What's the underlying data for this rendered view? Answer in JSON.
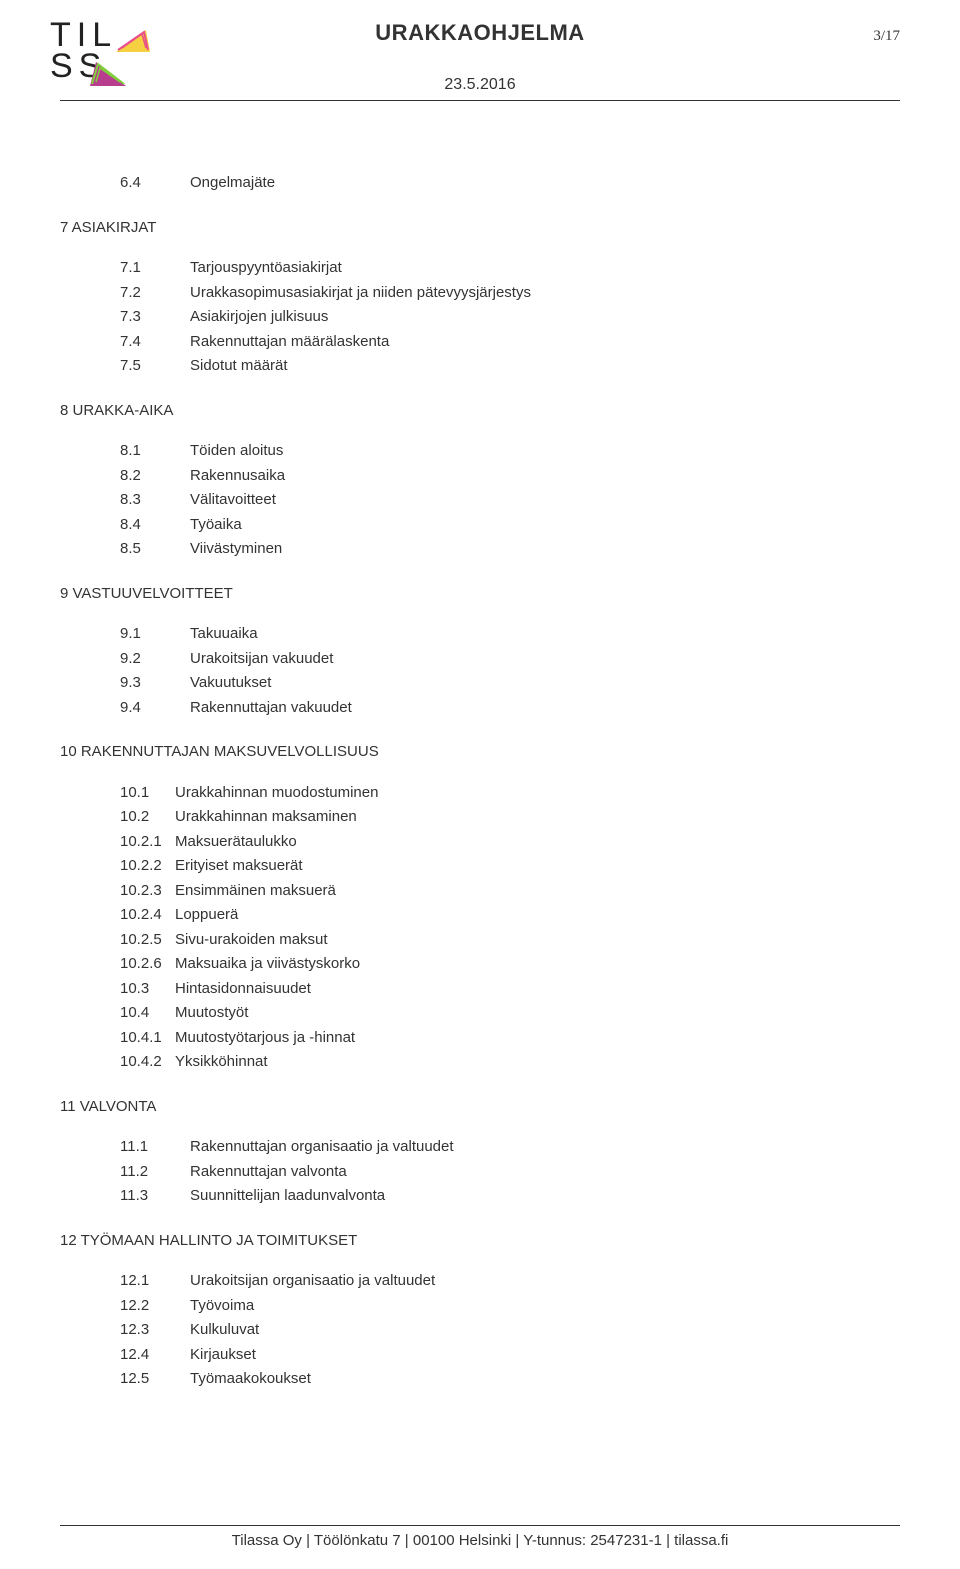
{
  "header": {
    "logo_line1": "TIL",
    "logo_line2": "SS",
    "title": "URAKKAOHJELMA",
    "page_current": "3",
    "page_sep": "/",
    "page_total": "17",
    "date": "23.5.2016"
  },
  "colors": {
    "text": "#333333",
    "rule": "#333333",
    "logo_tri1_a": "#f5d142",
    "logo_tri1_b": "#e94f8a",
    "logo_tri2_a": "#7fd13b",
    "logo_tri2_b": "#b83d8e"
  },
  "sections": [
    {
      "heading": null,
      "items": [
        {
          "num": "6.4",
          "text": "Ongelmajäte"
        }
      ]
    },
    {
      "heading": "7 ASIAKIRJAT",
      "items": [
        {
          "num": "7.1",
          "text": "Tarjouspyyntöasiakirjat"
        },
        {
          "num": "7.2",
          "text": "Urakkasopimusasiakirjat ja niiden pätevyysjärjestys"
        },
        {
          "num": "7.3",
          "text": "Asiakirjojen julkisuus"
        },
        {
          "num": "7.4",
          "text": "Rakennuttajan määrälaskenta"
        },
        {
          "num": "7.5",
          "text": "Sidotut määrät"
        }
      ]
    },
    {
      "heading": "8 URAKKA-AIKA",
      "items": [
        {
          "num": "8.1",
          "text": "Töiden aloitus"
        },
        {
          "num": "8.2",
          "text": "Rakennusaika"
        },
        {
          "num": "8.3",
          "text": "Välitavoitteet"
        },
        {
          "num": "8.4",
          "text": "Työaika"
        },
        {
          "num": "8.5",
          "text": "Viivästyminen"
        }
      ]
    },
    {
      "heading": "9 VASTUUVELVOITTEET",
      "items": [
        {
          "num": "9.1",
          "text": "Takuuaika"
        },
        {
          "num": "9.2",
          "text": "Urakoitsijan vakuudet"
        },
        {
          "num": "9.3",
          "text": "Vakuutukset"
        },
        {
          "num": "9.4",
          "text": "Rakennuttajan vakuudet"
        }
      ]
    },
    {
      "heading": "10 RAKENNUTTAJAN MAKSUVELVOLLISUUS",
      "block10": true,
      "items": [
        {
          "num": "10.1",
          "text": "Urakkahinnan muodostuminen"
        },
        {
          "num": "10.2",
          "text": "Urakkahinnan maksaminen"
        },
        {
          "num": "10.2.1",
          "text": "Maksuerätaulukko"
        },
        {
          "num": "10.2.2",
          "text": "Erityiset maksuerät"
        },
        {
          "num": "10.2.3",
          "text": "Ensimmäinen maksuerä"
        },
        {
          "num": "10.2.4",
          "text": "Loppuerä"
        },
        {
          "num": "10.2.5",
          "text": "Sivu-urakoiden maksut"
        },
        {
          "num": "10.2.6",
          "text": "Maksuaika ja viivästyskorko"
        },
        {
          "num": "10.3",
          "text": "Hintasidonnaisuudet"
        },
        {
          "num": "10.4",
          "text": "Muutostyöt"
        },
        {
          "num": "10.4.1",
          "text": "Muutostyötarjous ja -hinnat"
        },
        {
          "num": "10.4.2",
          "text": "Yksikköhinnat"
        }
      ]
    },
    {
      "heading": "11 VALVONTA",
      "items": [
        {
          "num": "11.1",
          "text": "Rakennuttajan organisaatio ja valtuudet"
        },
        {
          "num": "11.2",
          "text": "Rakennuttajan valvonta"
        },
        {
          "num": "11.3",
          "text": "Suunnittelijan laadunvalvonta"
        }
      ]
    },
    {
      "heading": "12 TYÖMAAN HALLINTO JA TOIMITUKSET",
      "items": [
        {
          "num": "12.1",
          "text": "Urakoitsijan organisaatio ja valtuudet"
        },
        {
          "num": "12.2",
          "text": "Työvoima"
        },
        {
          "num": "12.3",
          "text": "Kulkuluvat"
        },
        {
          "num": "12.4",
          "text": "Kirjaukset"
        },
        {
          "num": "12.5",
          "text": "Työmaakokoukset"
        }
      ]
    }
  ],
  "footer": "Tilassa Oy | Töölönkatu 7 | 00100 Helsinki | Y-tunnus: 2547231-1 | tilassa.fi"
}
